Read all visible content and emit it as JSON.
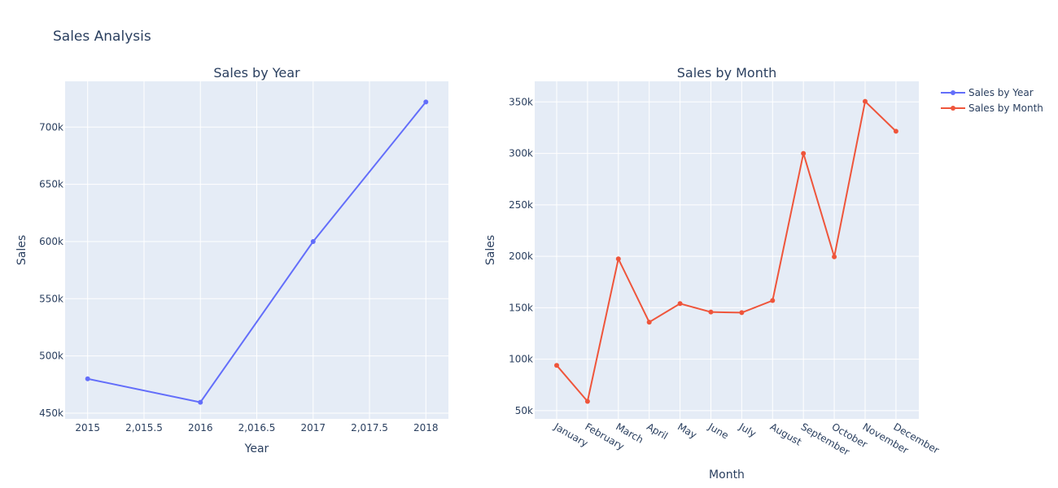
{
  "title": "Sales Analysis",
  "colors": {
    "year": "#636efa",
    "month": "#ef553b",
    "plot_bg": "#e5ecf6",
    "text": "#2a3f5f"
  },
  "legend": {
    "placement": "top-right",
    "items": [
      {
        "label": "Sales by Year",
        "color": "#636efa"
      },
      {
        "label": "Sales by Month",
        "color": "#ef553b"
      }
    ]
  },
  "chart_data": [
    {
      "type": "line",
      "title": "Sales by Year",
      "xlabel": "Year",
      "ylabel": "Sales",
      "x": [
        2015,
        2016,
        2017,
        2018
      ],
      "series": [
        {
          "name": "Sales by Year",
          "values": [
            480000,
            459500,
            600000,
            722000
          ]
        }
      ],
      "xlim": [
        2014.8,
        2018.2
      ],
      "ylim": [
        445000,
        740000
      ],
      "x_ticks": [
        2015,
        2015.5,
        2016,
        2016.5,
        2017,
        2017.5,
        2018
      ],
      "x_tick_labels": [
        "2015",
        "2,015.5",
        "2016",
        "2,016.5",
        "2017",
        "2,017.5",
        "2018"
      ],
      "y_ticks": [
        450000,
        500000,
        550000,
        600000,
        650000,
        700000
      ],
      "y_tick_labels": [
        "450k",
        "500k",
        "550k",
        "600k",
        "650k",
        "700k"
      ],
      "grid": true
    },
    {
      "type": "line",
      "title": "Sales by Month",
      "xlabel": "Month",
      "ylabel": "Sales",
      "categories": [
        "January",
        "February",
        "March",
        "April",
        "May",
        "June",
        "July",
        "August",
        "September",
        "October",
        "November",
        "December"
      ],
      "series": [
        {
          "name": "Sales by Month",
          "values": [
            94000,
            59000,
            197500,
            136000,
            154000,
            145800,
            145200,
            157000,
            300000,
            199500,
            350500,
            321500
          ]
        }
      ],
      "ylim": [
        42000,
        370000
      ],
      "y_ticks": [
        50000,
        100000,
        150000,
        200000,
        250000,
        300000,
        350000
      ],
      "y_tick_labels": [
        "50k",
        "100k",
        "150k",
        "200k",
        "250k",
        "300k",
        "350k"
      ],
      "grid": true
    }
  ]
}
